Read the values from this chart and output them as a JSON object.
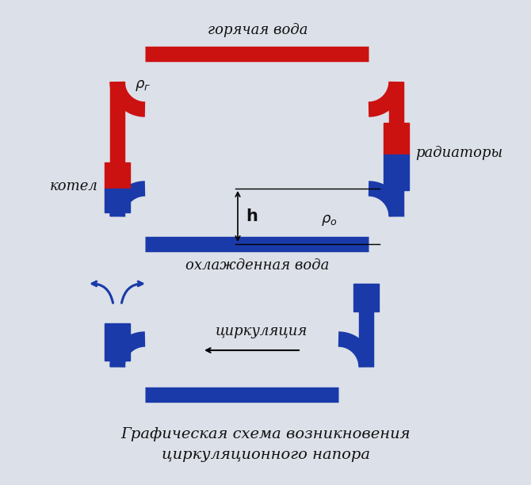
{
  "bg_color": "#dce0e8",
  "red_color": "#cc1111",
  "blue_color": "#1a3aaa",
  "text_color": "#111111",
  "title": "Графическая схема возникновения",
  "title2": "циркуляционного напора",
  "label_hot": "горячая вода",
  "label_cold": "охлажденная вода",
  "label_boiler": "котел",
  "label_radiator": "радиаторы",
  "label_circ": "циркуляция",
  "label_h": "h"
}
